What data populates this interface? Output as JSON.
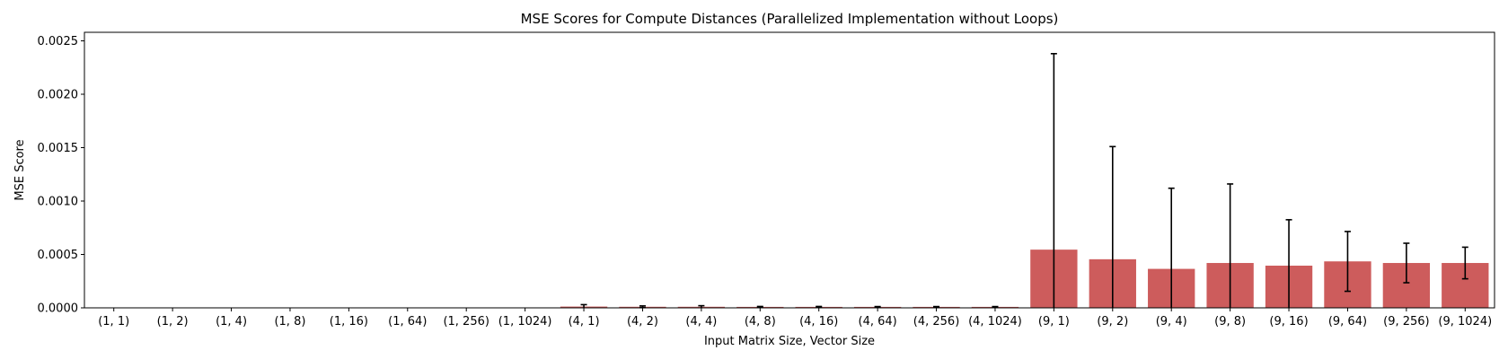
{
  "chart_data": {
    "type": "bar",
    "title": "MSE Scores for Compute Distances (Parallelized Implementation without Loops)",
    "xlabel": "Input Matrix Size, Vector Size",
    "ylabel": "MSE Score",
    "ylim": [
      0,
      0.00258
    ],
    "yticks": [
      0.0,
      0.0005,
      0.001,
      0.0015,
      0.002,
      0.0025
    ],
    "ytick_labels": [
      "0.0000",
      "0.0005",
      "0.0010",
      "0.0015",
      "0.0020",
      "0.0025"
    ],
    "bar_color": "#cd5c5c",
    "categories": [
      "(1, 1)",
      "(1, 2)",
      "(1, 4)",
      "(1, 8)",
      "(1, 16)",
      "(1, 64)",
      "(1, 256)",
      "(1, 1024)",
      "(4, 1)",
      "(4, 2)",
      "(4, 4)",
      "(4, 8)",
      "(4, 16)",
      "(4, 64)",
      "(4, 256)",
      "(4, 1024)",
      "(9, 1)",
      "(9, 2)",
      "(9, 4)",
      "(9, 8)",
      "(9, 16)",
      "(9, 64)",
      "(9, 256)",
      "(9, 1024)"
    ],
    "values": [
      0,
      0,
      0,
      0,
      0,
      0,
      0,
      0,
      1.2e-05,
      1e-05,
      1e-05,
      9e-06,
      9e-06,
      9e-06,
      9e-06,
      9e-06,
      0.000545,
      0.000455,
      0.000365,
      0.00042,
      0.000395,
      0.000435,
      0.00042,
      0.00042
    ],
    "error": [
      0,
      0,
      0,
      0,
      0,
      0,
      0,
      0,
      1.8e-05,
      8e-06,
      1e-05,
      4e-06,
      4e-06,
      3e-06,
      3e-06,
      3e-06,
      0.001835,
      0.001055,
      0.000755,
      0.00074,
      0.00043,
      0.00028,
      0.000185,
      0.000148
    ],
    "grid": false,
    "legend": "none"
  }
}
